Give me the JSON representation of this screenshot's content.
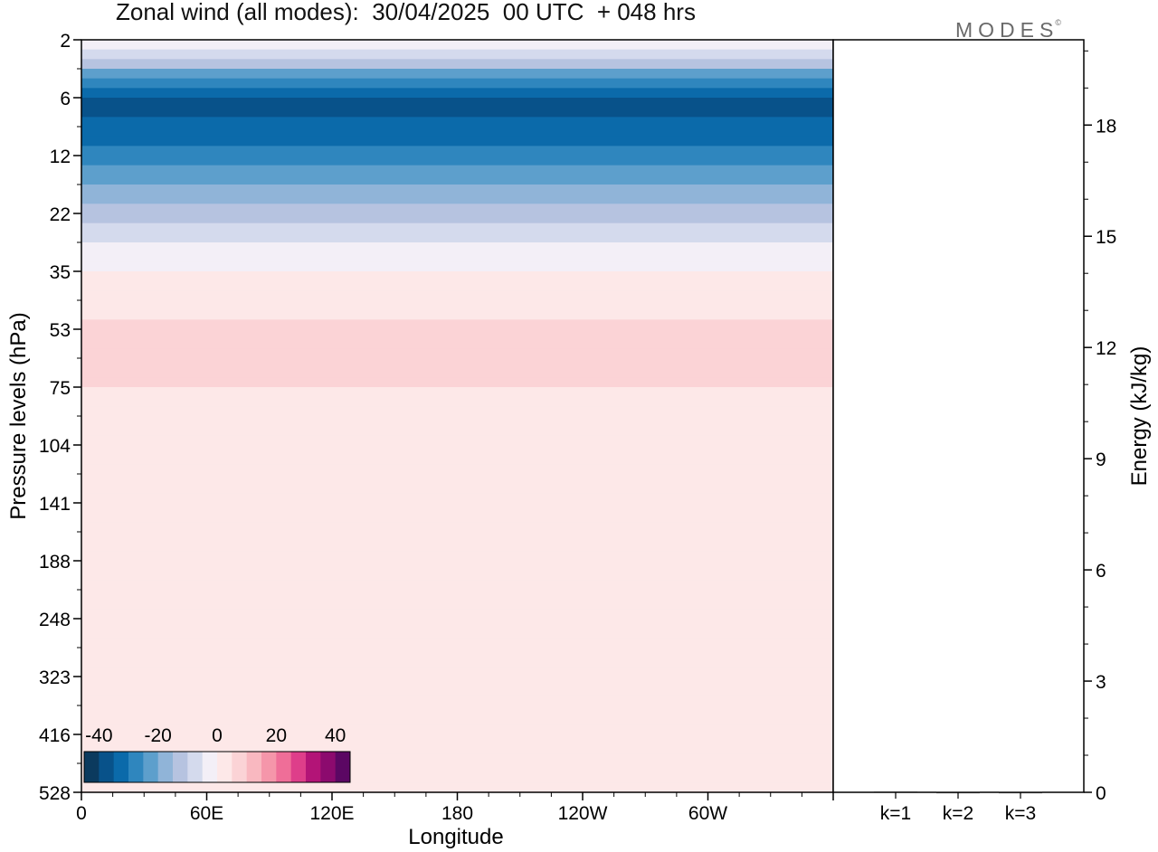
{
  "title": "Zonal wind (all modes):  30/04/2025  00 UTC  + 048 hrs",
  "brand": "MODES",
  "brand_mark": "©",
  "colors": {
    "scale": [
      "#0b3a5e",
      "#08528a",
      "#0b6aaa",
      "#2f86be",
      "#5d9fcc",
      "#90b4d8",
      "#b6c3e0",
      "#d4daed",
      "#f3eff7",
      "#fde8e8",
      "#fbd3d6",
      "#f9b8c0",
      "#f596aa",
      "#ef6e98",
      "#de3e8a",
      "#b31477",
      "#8c0a6e",
      "#5b0763"
    ]
  },
  "chart_data": [
    {
      "type": "heatmap",
      "title": "Zonal wind (all modes):  30/04/2025  00 UTC  + 048 hrs",
      "xlabel": "Longitude",
      "ylabel": "Pressure levels (hPa)",
      "x_ticks": [
        "0",
        "60E",
        "120E",
        "180",
        "120W",
        "60W"
      ],
      "y_ticks": [
        "2",
        "6",
        "12",
        "22",
        "35",
        "53",
        "75",
        "104",
        "141",
        "188",
        "248",
        "323",
        "416",
        "528"
      ],
      "colorbar": {
        "tick_labels": [
          "-40",
          "-20",
          "0",
          "20",
          "40"
        ],
        "vmin": -45,
        "vmax": 45,
        "step": 5
      },
      "profile": [
        {
          "level": "2",
          "value": 3
        },
        {
          "level": "6",
          "value": -38
        },
        {
          "level": "12",
          "value": -28
        },
        {
          "level": "22",
          "value": -12
        },
        {
          "level": "35",
          "value": 0
        },
        {
          "level": "53",
          "value": 6
        },
        {
          "level": "75",
          "value": 5
        },
        {
          "level": "104",
          "value": 2
        },
        {
          "level": "141",
          "value": 2
        },
        {
          "level": "188",
          "value": 2
        },
        {
          "level": "248",
          "value": 1
        },
        {
          "level": "323",
          "value": 1
        },
        {
          "level": "416",
          "value": 0
        },
        {
          "level": "528",
          "value": 0
        }
      ]
    },
    {
      "type": "bar",
      "ylabel": "Energy (kJ/kg)",
      "categories": [
        "k=1",
        "k=2",
        "k=3"
      ],
      "values": [
        0.02,
        0.01,
        0.01
      ],
      "ylim": [
        0,
        20.3
      ],
      "y_ticks": [
        "0",
        "3",
        "6",
        "9",
        "12",
        "15",
        "18"
      ]
    }
  ]
}
